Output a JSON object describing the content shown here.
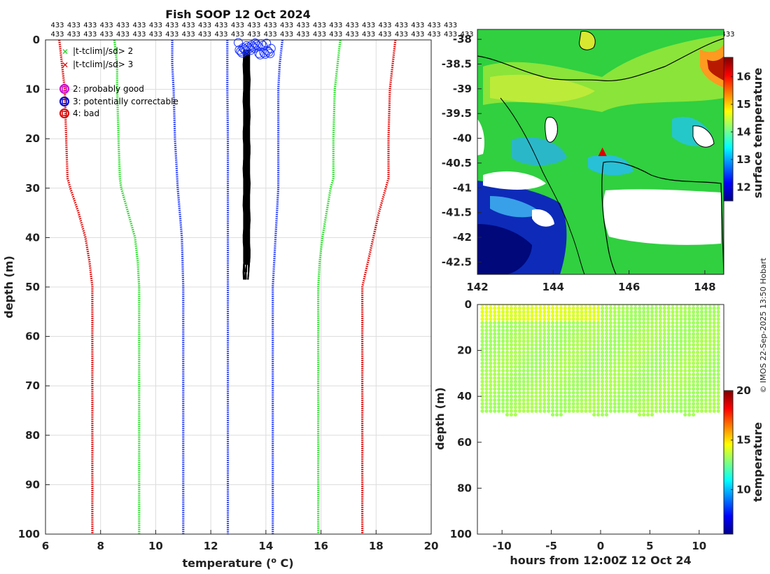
{
  "chart_data": [
    {
      "type": "line",
      "title": "Fish SOOP 12 Oct 2024",
      "xlabel": "temperature (",
      "xlabel_sup": "o",
      "xlabel_end": " C)",
      "ylabel": "depth (m)",
      "xlim": [
        6,
        20
      ],
      "ylim": [
        100,
        0
      ],
      "xticks": [
        6,
        8,
        10,
        12,
        14,
        16,
        18,
        20
      ],
      "yticks": [
        0,
        10,
        20,
        30,
        40,
        50,
        60,
        70,
        80,
        90,
        100
      ],
      "top_count_label": "433",
      "top_count_columns": 25,
      "series": [
        {
          "name": "clim +3sd",
          "color": "#e00000",
          "depth": [
            0,
            5,
            10,
            20,
            28,
            30,
            35,
            40,
            45,
            50,
            90,
            100
          ],
          "values": [
            18.7,
            18.6,
            18.5,
            18.45,
            18.45,
            18.35,
            18.1,
            17.9,
            17.7,
            17.5,
            17.5,
            17.5
          ]
        },
        {
          "name": "clim +2sd",
          "color": "#22dd22",
          "depth": [
            0,
            5,
            10,
            20,
            28,
            30,
            35,
            40,
            45,
            50,
            90,
            100
          ],
          "values": [
            16.7,
            16.6,
            16.5,
            16.45,
            16.45,
            16.35,
            16.2,
            16.05,
            15.95,
            15.9,
            15.9,
            15.9
          ]
        },
        {
          "name": "clim +1sd",
          "color": "#1a33ff",
          "depth": [
            0,
            5,
            10,
            20,
            30,
            40,
            50,
            90,
            100
          ],
          "values": [
            14.6,
            14.5,
            14.45,
            14.45,
            14.45,
            14.35,
            14.25,
            14.25,
            14.25
          ]
        },
        {
          "name": "clim mean",
          "color": "#1a33ff",
          "depth": [
            0,
            10,
            20,
            30,
            40,
            50,
            90,
            100
          ],
          "values": [
            12.6,
            12.6,
            12.62,
            12.62,
            12.62,
            12.62,
            12.62,
            12.62
          ]
        },
        {
          "name": "clim -1sd",
          "color": "#1a33ff",
          "depth": [
            0,
            5,
            10,
            20,
            30,
            40,
            50,
            90,
            100
          ],
          "values": [
            10.6,
            10.6,
            10.65,
            10.7,
            10.8,
            10.95,
            11.0,
            11.0,
            11.0
          ]
        },
        {
          "name": "clim -2sd",
          "color": "#22dd22",
          "depth": [
            0,
            5,
            10,
            20,
            28,
            30,
            35,
            40,
            45,
            50,
            90,
            100
          ],
          "values": [
            8.5,
            8.6,
            8.6,
            8.65,
            8.7,
            8.75,
            9.0,
            9.25,
            9.35,
            9.4,
            9.4,
            9.4
          ]
        },
        {
          "name": "clim -3sd",
          "color": "#e00000",
          "depth": [
            0,
            5,
            10,
            20,
            28,
            30,
            35,
            40,
            45,
            50,
            90,
            100
          ],
          "values": [
            6.5,
            6.6,
            6.7,
            6.75,
            6.8,
            6.9,
            7.2,
            7.45,
            7.6,
            7.7,
            7.7,
            7.7
          ]
        }
      ],
      "profiles": {
        "color": "#000000",
        "temp_min": 13.2,
        "temp_max": 13.4,
        "depth_max": 49.5
      },
      "flag_circles": {
        "color": "#1a33ff",
        "depth_max": 2.5,
        "temp_min": 13.0,
        "temp_max": 14.2
      },
      "legend": [
        {
          "symbol": "x",
          "color": "#22cc22",
          "label": "|t-tclim|/sd> 2"
        },
        {
          "symbol": "x",
          "color": "#dd0000",
          "label": "|t-tclim|/sd> 3"
        },
        {
          "symbol": "o",
          "color": "#cc00cc",
          "label": "2: probably good"
        },
        {
          "symbol": "o",
          "color": "#0000cc",
          "label": "3: potentially correctable"
        },
        {
          "symbol": "o",
          "color": "#dd0000",
          "label": "4: bad"
        }
      ]
    },
    {
      "type": "heatmap",
      "title": "",
      "xlabel": "",
      "ylabel": "",
      "xlim": [
        142,
        148.5
      ],
      "ylim": [
        -42.75,
        -37.8
      ],
      "xticks": [
        142,
        144,
        146,
        148
      ],
      "yticks": [
        -38,
        -38.5,
        -39,
        -39.5,
        -40,
        -40.5,
        -41,
        -41.5,
        -42,
        -42.5
      ],
      "colorbar": {
        "label": "surface temperature",
        "range": [
          11.5,
          16.7
        ],
        "ticks": [
          12,
          13,
          14,
          15,
          16
        ]
      },
      "track_marker": {
        "lon": 145.3,
        "lat": -40.25,
        "color": "#e00000"
      }
    },
    {
      "type": "scatter",
      "xlabel": "hours from 12:00Z 12 Oct 24",
      "ylabel": "depth (m)",
      "xlim": [
        -12.5,
        12.5
      ],
      "ylim": [
        100,
        0
      ],
      "xticks": [
        -10,
        -5,
        0,
        5,
        10
      ],
      "yticks": [
        0,
        20,
        40,
        60,
        80,
        100
      ],
      "hours_range": [
        -12,
        12.3
      ],
      "depth_range": [
        0,
        49
      ],
      "temperature_range": [
        13.2,
        13.4
      ],
      "colorbar": {
        "label": "temperature",
        "range": [
          5.5,
          20
        ],
        "ticks": [
          10,
          15,
          20
        ]
      }
    }
  ],
  "copyright": "© IMOS 22-Sep-2025 13:50 Hobart"
}
